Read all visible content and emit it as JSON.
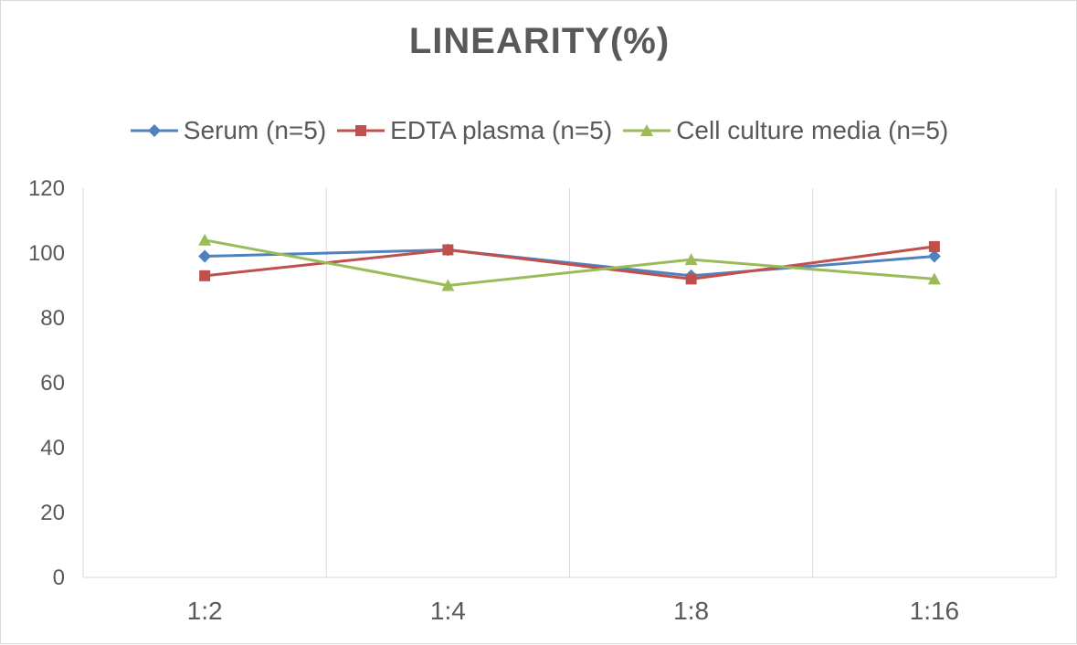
{
  "chart_data": {
    "type": "line",
    "title": "LINEARITY(%)",
    "xlabel": "",
    "ylabel": "",
    "categories": [
      "1:2",
      "1:4",
      "1:8",
      "1:16"
    ],
    "ylim": [
      0,
      120
    ],
    "yticks": [
      0,
      20,
      40,
      60,
      80,
      100,
      120
    ],
    "grid": "vertical",
    "legend_position": "top",
    "series": [
      {
        "name": "Serum (n=5)",
        "values": [
          99,
          101,
          93,
          99
        ],
        "color": "#4F81BD",
        "marker": "diamond"
      },
      {
        "name": "EDTA plasma (n=5)",
        "values": [
          93,
          101,
          92,
          102
        ],
        "color": "#C0504D",
        "marker": "square"
      },
      {
        "name": "Cell culture media (n=5)",
        "values": [
          104,
          90,
          98,
          92
        ],
        "color": "#9BBB59",
        "marker": "triangle"
      }
    ]
  }
}
